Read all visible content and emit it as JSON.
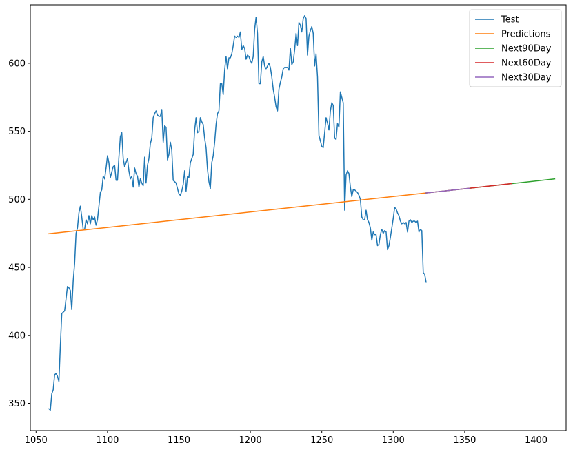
{
  "chart_data": {
    "type": "line",
    "title": "",
    "xlabel": "",
    "ylabel": "",
    "xlim": [
      1046,
      1421
    ],
    "ylim": [
      330,
      643
    ],
    "xticks": [
      1050,
      1100,
      1150,
      1200,
      1250,
      1300,
      1350,
      1400
    ],
    "yticks": [
      350,
      400,
      450,
      500,
      550,
      600
    ],
    "grid": false,
    "legend_position": "top-right",
    "series": [
      {
        "name": "Test",
        "color": "#1f77b4",
        "x": [
          1059,
          1060,
          1061,
          1062,
          1063,
          1064,
          1065,
          1066,
          1067,
          1068,
          1069,
          1070,
          1071,
          1072,
          1073,
          1074,
          1075,
          1076,
          1077,
          1078,
          1079,
          1080,
          1081,
          1082,
          1083,
          1084,
          1085,
          1086,
          1087,
          1088,
          1089,
          1090,
          1091,
          1092,
          1093,
          1094,
          1095,
          1096,
          1097,
          1098,
          1099,
          1100,
          1101,
          1102,
          1103,
          1104,
          1105,
          1106,
          1107,
          1108,
          1109,
          1110,
          1111,
          1112,
          1113,
          1114,
          1115,
          1116,
          1117,
          1118,
          1119,
          1120,
          1121,
          1122,
          1123,
          1124,
          1125,
          1126,
          1127,
          1128,
          1129,
          1130,
          1131,
          1132,
          1133,
          1134,
          1135,
          1136,
          1137,
          1138,
          1139,
          1140,
          1141,
          1142,
          1143,
          1144,
          1145,
          1146,
          1147,
          1148,
          1149,
          1150,
          1151,
          1152,
          1153,
          1154,
          1155,
          1156,
          1157,
          1158,
          1159,
          1160,
          1161,
          1162,
          1163,
          1164,
          1165,
          1166,
          1167,
          1168,
          1169,
          1170,
          1171,
          1172,
          1173,
          1174,
          1175,
          1176,
          1177,
          1178,
          1179,
          1180,
          1181,
          1182,
          1183,
          1184,
          1185,
          1186,
          1187,
          1188,
          1189,
          1190,
          1191,
          1192,
          1193,
          1194,
          1195,
          1196,
          1197,
          1198,
          1199,
          1200,
          1201,
          1202,
          1203,
          1204,
          1205,
          1206,
          1207,
          1208,
          1209,
          1210,
          1211,
          1212,
          1213,
          1214,
          1215,
          1216,
          1217,
          1218,
          1219,
          1220,
          1221,
          1222,
          1223,
          1224,
          1225,
          1226,
          1227,
          1228,
          1229,
          1230,
          1231,
          1232,
          1233,
          1234,
          1235,
          1236,
          1237,
          1238,
          1239,
          1240,
          1241,
          1242,
          1243,
          1244,
          1245,
          1246,
          1247,
          1248,
          1249,
          1250,
          1251,
          1252,
          1253,
          1254,
          1255,
          1256,
          1257,
          1258,
          1259,
          1260,
          1261,
          1262,
          1263,
          1264,
          1265,
          1266,
          1267,
          1268,
          1269,
          1270,
          1271,
          1272,
          1273,
          1274,
          1275,
          1276,
          1277,
          1278,
          1279,
          1280,
          1281,
          1282,
          1283,
          1284,
          1285,
          1286,
          1287,
          1288,
          1289,
          1290,
          1291,
          1292,
          1293,
          1294,
          1295,
          1296,
          1297,
          1298,
          1299,
          1300,
          1301,
          1302,
          1303,
          1304,
          1305,
          1306,
          1307,
          1308,
          1309,
          1310,
          1311,
          1312,
          1313,
          1314,
          1315,
          1316,
          1317,
          1318,
          1319,
          1320,
          1321,
          1322,
          1323
        ],
        "values": [
          346,
          345,
          357,
          360,
          371,
          372,
          370,
          366,
          392,
          416,
          417,
          418,
          427,
          436,
          435,
          433,
          419,
          440,
          453,
          475,
          479,
          490,
          495,
          487,
          478,
          478,
          485,
          482,
          488,
          482,
          488,
          485,
          487,
          481,
          485,
          495,
          505,
          507,
          517,
          515,
          523,
          532,
          527,
          516,
          520,
          524,
          525,
          514,
          514,
          531,
          546,
          549,
          530,
          524,
          527,
          530,
          521,
          515,
          517,
          509,
          523,
          519,
          517,
          509,
          515,
          512,
          510,
          531,
          512,
          525,
          530,
          541,
          545,
          560,
          563,
          565,
          562,
          561,
          561,
          566,
          542,
          554,
          553,
          529,
          533,
          542,
          536,
          514,
          513,
          512,
          508,
          504,
          503,
          506,
          511,
          521,
          506,
          517,
          516,
          527,
          530,
          533,
          551,
          560,
          549,
          550,
          560,
          557,
          555,
          545,
          538,
          522,
          513,
          508,
          527,
          532,
          542,
          555,
          563,
          565,
          585,
          585,
          577,
          595,
          605,
          596,
          604,
          604,
          607,
          613,
          620,
          619,
          620,
          619,
          623,
          610,
          613,
          611,
          603,
          606,
          605,
          602,
          600,
          605,
          625,
          634,
          622,
          585,
          585,
          601,
          605,
          598,
          596,
          598,
          600,
          597,
          590,
          581,
          575,
          568,
          565,
          581,
          586,
          590,
          596,
          597,
          597,
          597,
          595,
          611,
          599,
          601,
          610,
          622,
          613,
          630,
          628,
          623,
          633,
          635,
          633,
          606,
          620,
          624,
          627,
          622,
          598,
          607,
          590,
          547,
          543,
          539,
          538,
          549,
          560,
          556,
          551,
          565,
          571,
          569,
          545,
          544,
          556,
          553,
          579,
          575,
          571,
          492,
          518,
          521,
          519,
          509,
          502,
          507,
          507,
          506,
          505,
          503,
          500,
          487,
          485,
          485,
          492,
          485,
          483,
          479,
          470,
          476,
          474,
          474,
          466,
          467,
          474,
          478,
          475,
          477,
          476,
          463,
          466,
          472,
          479,
          486,
          494,
          493,
          490,
          488,
          484,
          482,
          483,
          482,
          483,
          476,
          484,
          485,
          483,
          484,
          484,
          483,
          484,
          476,
          478,
          477,
          446,
          445,
          439
        ]
      },
      {
        "name": "Predictions",
        "color": "#ff7f0e",
        "x": [
          1059,
          1323
        ],
        "values": [
          474.7,
          504.7
        ]
      },
      {
        "name": "Next90Day",
        "color": "#2ca02c",
        "x": [
          1323,
          1413
        ],
        "values": [
          504.7,
          515.0
        ]
      },
      {
        "name": "Next60Day",
        "color": "#d62728",
        "x": [
          1323,
          1383
        ],
        "values": [
          504.7,
          511.6
        ]
      },
      {
        "name": "Next30Day",
        "color": "#9467bd",
        "x": [
          1323,
          1353
        ],
        "values": [
          504.7,
          508.1
        ]
      }
    ]
  }
}
